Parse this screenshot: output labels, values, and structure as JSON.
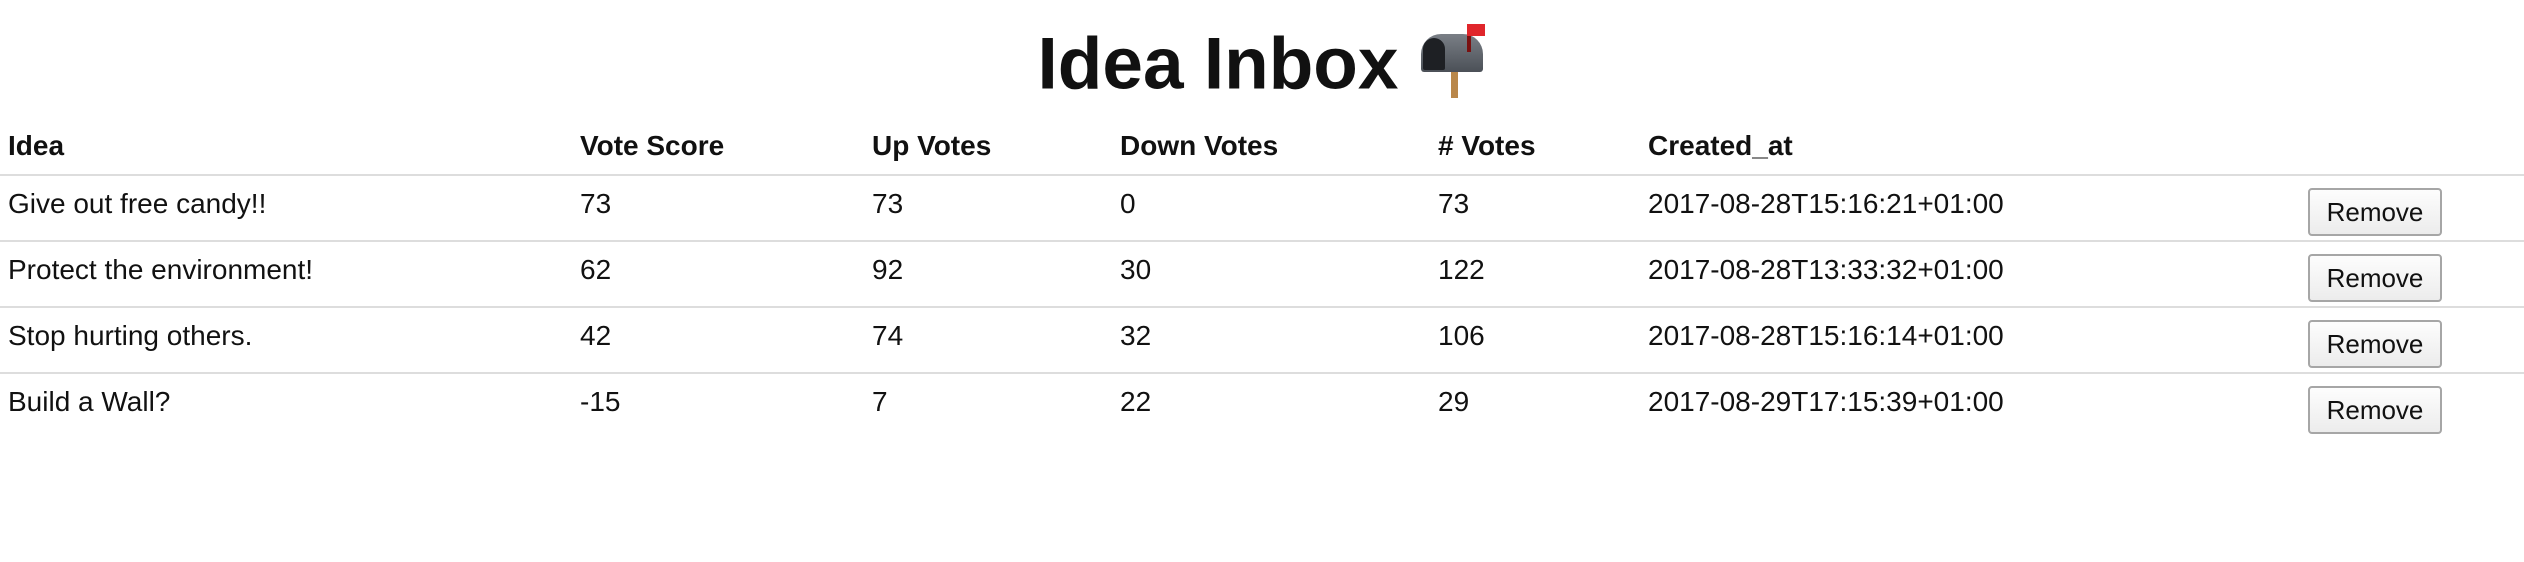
{
  "header": {
    "title": "Idea Inbox",
    "icon": "mailbox-with-raised-flag-icon"
  },
  "table": {
    "columns": [
      "Idea",
      "Vote Score",
      "Up Votes",
      "Down Votes",
      "# Votes",
      "Created_at",
      ""
    ],
    "rows": [
      {
        "idea": "Give out free candy!!",
        "vote_score": "73",
        "up_votes": "73",
        "down_votes": "0",
        "votes": "73",
        "created_at": "2017-08-28T15:16:21+01:00",
        "action": "Remove"
      },
      {
        "idea": "Protect the environment!",
        "vote_score": "62",
        "up_votes": "92",
        "down_votes": "30",
        "votes": "122",
        "created_at": "2017-08-28T13:33:32+01:00",
        "action": "Remove"
      },
      {
        "idea": "Stop hurting others.",
        "vote_score": "42",
        "up_votes": "74",
        "down_votes": "32",
        "votes": "106",
        "created_at": "2017-08-28T15:16:14+01:00",
        "action": "Remove"
      },
      {
        "idea": "Build a Wall?",
        "vote_score": "-15",
        "up_votes": "7",
        "down_votes": "22",
        "votes": "29",
        "created_at": "2017-08-29T17:15:39+01:00",
        "action": "Remove"
      }
    ]
  }
}
